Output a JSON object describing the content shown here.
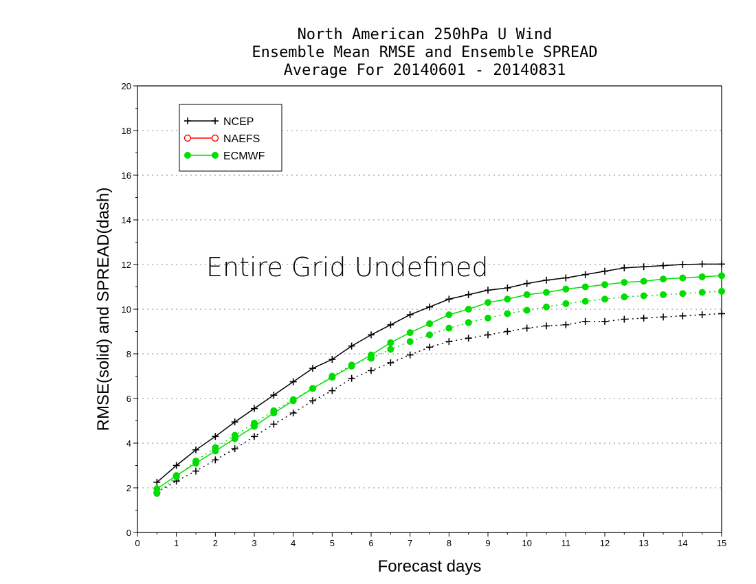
{
  "chart_data": {
    "type": "line",
    "title": [
      "North American 250hPa U Wind",
      "Ensemble Mean RMSE and Ensemble SPREAD",
      "Average For 20140601 - 20140831"
    ],
    "xlabel": "Forecast days",
    "ylabel": "RMSE(solid) and SPREAD(dash)",
    "xlim": [
      0,
      15
    ],
    "ylim": [
      0,
      20
    ],
    "xticks": [
      "0",
      "1",
      "2",
      "3",
      "4",
      "5",
      "6",
      "7",
      "8",
      "9",
      "10",
      "11",
      "12",
      "13",
      "14",
      "15"
    ],
    "yticks": [
      "0",
      "2",
      "4",
      "6",
      "8",
      "10",
      "12",
      "14",
      "16",
      "18",
      "20"
    ],
    "annotation": "Entire Grid Undefined",
    "grid": true,
    "legend_position": "top-left",
    "x": [
      0.5,
      1,
      1.5,
      2,
      2.5,
      3,
      3.5,
      4,
      4.5,
      5,
      5.5,
      6,
      6.5,
      7,
      7.5,
      8,
      8.5,
      9,
      9.5,
      10,
      10.5,
      11,
      11.5,
      12,
      12.5,
      13,
      13.5,
      14,
      14.5,
      15
    ],
    "legend": [
      {
        "name": "NCEP",
        "color": "#000000",
        "marker": "plus"
      },
      {
        "name": "NAEFS",
        "color": "#ff0000",
        "marker": "open-circle"
      },
      {
        "name": "ECMWF",
        "color": "#00dd00",
        "marker": "filled-circle"
      }
    ],
    "series": [
      {
        "name": "NCEP",
        "kind": "RMSE",
        "style": "solid",
        "color": "#000000",
        "marker": "plus",
        "values": [
          2.25,
          3.0,
          3.7,
          4.3,
          4.95,
          5.55,
          6.15,
          6.75,
          7.35,
          7.75,
          8.35,
          8.85,
          9.3,
          9.75,
          10.1,
          10.45,
          10.65,
          10.85,
          10.95,
          11.15,
          11.3,
          11.4,
          11.55,
          11.7,
          11.85,
          11.9,
          11.95,
          12.0,
          12.02,
          12.02
        ]
      },
      {
        "name": "NCEP",
        "kind": "SPREAD",
        "style": "dash",
        "color": "#000000",
        "marker": "plus",
        "values": [
          1.8,
          2.3,
          2.75,
          3.25,
          3.75,
          4.3,
          4.85,
          5.35,
          5.9,
          6.35,
          6.9,
          7.25,
          7.6,
          7.95,
          8.3,
          8.55,
          8.7,
          8.85,
          9.0,
          9.15,
          9.25,
          9.3,
          9.45,
          9.45,
          9.55,
          9.6,
          9.65,
          9.7,
          9.75,
          9.8
        ]
      },
      {
        "name": "ECMWF",
        "kind": "RMSE",
        "style": "solid",
        "color": "#00dd00",
        "marker": "filled-circle",
        "values": [
          1.95,
          2.55,
          3.1,
          3.65,
          4.2,
          4.75,
          5.35,
          5.9,
          6.45,
          6.95,
          7.45,
          7.95,
          8.5,
          8.95,
          9.35,
          9.75,
          10.0,
          10.3,
          10.45,
          10.65,
          10.75,
          10.9,
          11.0,
          11.1,
          11.2,
          11.25,
          11.35,
          11.4,
          11.45,
          11.5
        ]
      },
      {
        "name": "ECMWF",
        "kind": "SPREAD",
        "style": "dash",
        "color": "#00dd00",
        "marker": "filled-circle",
        "values": [
          1.75,
          2.5,
          3.2,
          3.8,
          4.35,
          4.9,
          5.45,
          5.95,
          6.45,
          7.0,
          7.5,
          7.8,
          8.2,
          8.55,
          8.85,
          9.15,
          9.4,
          9.6,
          9.8,
          9.95,
          10.1,
          10.25,
          10.35,
          10.45,
          10.55,
          10.6,
          10.65,
          10.7,
          10.75,
          10.8
        ]
      }
    ]
  }
}
